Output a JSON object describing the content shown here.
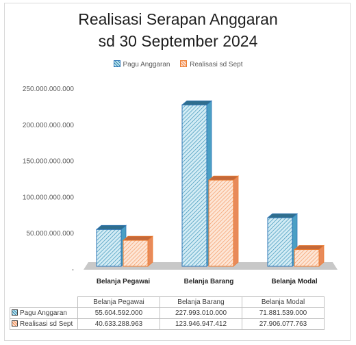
{
  "chart_data": {
    "type": "bar",
    "title_line1": "Realisasi Serapan Anggaran",
    "title_line2": "sd 30 September 2024",
    "categories": [
      "Belanja Pegawai",
      "Belanja Barang",
      "Belanja Modal"
    ],
    "series": [
      {
        "name": "Pagu Anggaran",
        "values": [
          55604592000,
          227993010000,
          71881539000
        ],
        "labels": [
          "55.604.592.000",
          "227.993.010.000",
          "71.881.539.000"
        ],
        "color": "#2e75b6",
        "fill_light": "#bfe3f0",
        "stripe": "#2e86ab"
      },
      {
        "name": "Realisasi sd Sept",
        "values": [
          40633288963,
          123946947412,
          27906077763
        ],
        "labels": [
          "40.633.288.963",
          "123.946.947.412",
          "27.906.077.763"
        ],
        "color": "#ed7d31",
        "fill_light": "#fde0cd",
        "stripe": "#f08a50"
      }
    ],
    "ylim": [
      0,
      250000000000
    ],
    "yticks": [
      0,
      50000000000,
      100000000000,
      150000000000,
      200000000000,
      250000000000
    ],
    "ytick_labels": [
      "-",
      "50.000.000.000",
      "100.000.000.000",
      "150.000.000.000",
      "200.000.000.000",
      "250.000.000.000"
    ],
    "legend_position": "top-center",
    "grid": false,
    "data_table": true
  }
}
